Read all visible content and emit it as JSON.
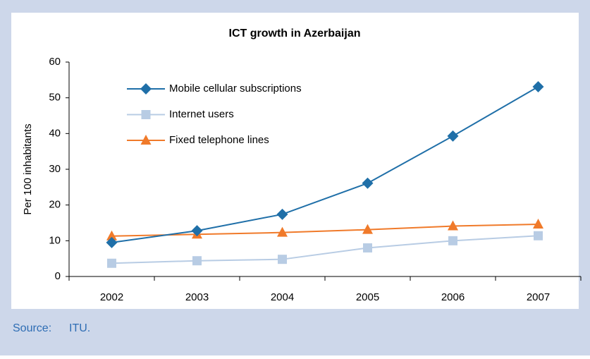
{
  "chart_data": {
    "type": "line",
    "title": "ICT growth in Azerbaijan",
    "ylabel": "Per 100 inhabitants",
    "categories": [
      "2002",
      "2003",
      "2004",
      "2005",
      "2006",
      "2007"
    ],
    "series": [
      {
        "name": "Mobile cellular subscriptions",
        "color": "#1f6fa8",
        "marker": "diamond",
        "values": [
          9.5,
          12.8,
          17.4,
          26.1,
          39.3,
          53.1
        ]
      },
      {
        "name": "Internet users",
        "color": "#b8cce4",
        "marker": "square",
        "values": [
          3.7,
          4.4,
          4.8,
          8.0,
          10.0,
          11.4
        ]
      },
      {
        "name": "Fixed telephone lines",
        "color": "#f07a2a",
        "marker": "triangle",
        "values": [
          11.3,
          11.8,
          12.3,
          13.1,
          14.1,
          14.6
        ]
      }
    ],
    "ylim": [
      0,
      60
    ],
    "yticks": [
      0,
      10,
      20,
      30,
      40,
      50,
      60
    ],
    "grid": false,
    "legend": "upper-left"
  },
  "footer": {
    "label": "Source:",
    "text": "ITU."
  }
}
